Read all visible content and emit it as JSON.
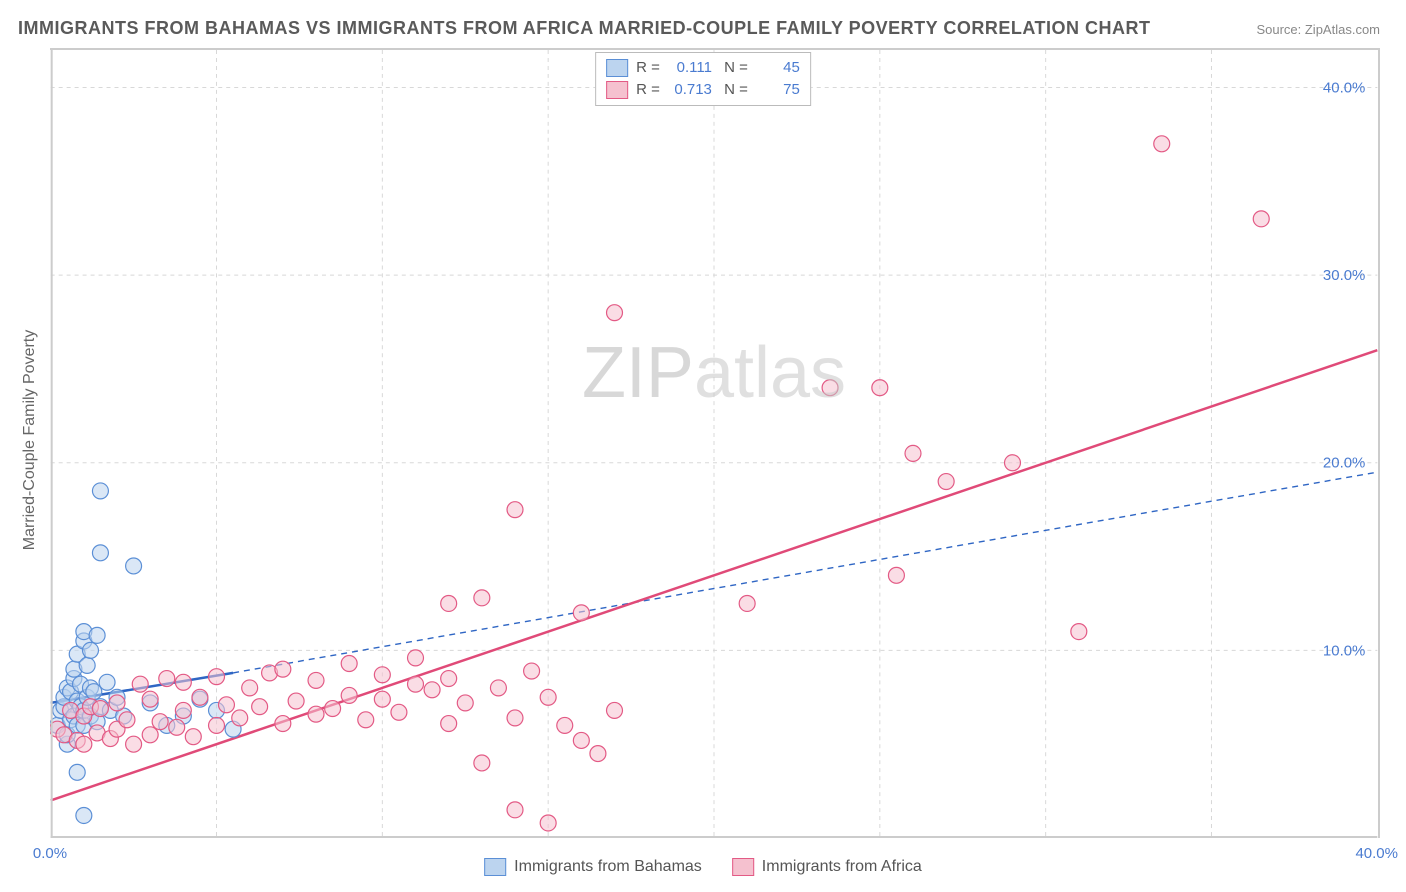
{
  "title": "IMMIGRANTS FROM BAHAMAS VS IMMIGRANTS FROM AFRICA MARRIED-COUPLE FAMILY POVERTY CORRELATION CHART",
  "source": "Source: ZipAtlas.com",
  "ylabel": "Married-Couple Family Poverty",
  "watermark_a": "ZIP",
  "watermark_b": "atlas",
  "chart": {
    "type": "scatter",
    "xlim": [
      0,
      40
    ],
    "ylim": [
      0,
      42
    ],
    "xticks": [
      0,
      10,
      20,
      30,
      40
    ],
    "xtick_labels": [
      "0.0%",
      "",
      "",
      "",
      "40.0%"
    ],
    "yticks": [
      10,
      20,
      30,
      40
    ],
    "ytick_labels": [
      "10.0%",
      "20.0%",
      "30.0%",
      "40.0%"
    ],
    "xgrid_minor": [
      5,
      10,
      15,
      20,
      25,
      30,
      35
    ],
    "background_color": "#ffffff",
    "grid_color": "#d8d8d8",
    "marker_radius": 8,
    "marker_stroke_width": 1.2,
    "trend_solid_width": 2.5,
    "trend_dash_width": 1.4,
    "series": [
      {
        "name": "Immigrants from Bahamas",
        "fill": "#bcd4ef",
        "stroke": "#5b8fd6",
        "fill_opacity": 0.55,
        "R": "0.111",
        "N": "45",
        "trend_solid": {
          "x1": 0,
          "y1": 7.2,
          "x2": 5.5,
          "y2": 8.8
        },
        "trend_dash": {
          "x1": 5.5,
          "y1": 8.8,
          "x2": 40,
          "y2": 19.5
        },
        "trend_color": "#2f66c4",
        "points": [
          [
            0.2,
            6.0
          ],
          [
            0.3,
            6.8
          ],
          [
            0.4,
            7.0
          ],
          [
            0.4,
            7.5
          ],
          [
            0.5,
            5.0
          ],
          [
            0.5,
            5.5
          ],
          [
            0.5,
            8.0
          ],
          [
            0.6,
            6.3
          ],
          [
            0.6,
            7.8
          ],
          [
            0.7,
            6.5
          ],
          [
            0.7,
            8.5
          ],
          [
            0.7,
            9.0
          ],
          [
            0.8,
            3.5
          ],
          [
            0.8,
            6.0
          ],
          [
            0.8,
            7.3
          ],
          [
            0.8,
            9.8
          ],
          [
            0.9,
            7.0
          ],
          [
            0.9,
            8.2
          ],
          [
            1.0,
            6.0
          ],
          [
            1.0,
            6.8
          ],
          [
            1.0,
            10.5
          ],
          [
            1.0,
            11.0
          ],
          [
            1.1,
            7.5
          ],
          [
            1.1,
            9.2
          ],
          [
            1.2,
            6.5
          ],
          [
            1.2,
            8.0
          ],
          [
            1.2,
            10.0
          ],
          [
            1.3,
            7.8
          ],
          [
            1.4,
            6.2
          ],
          [
            1.4,
            10.8
          ],
          [
            1.5,
            7.0
          ],
          [
            1.5,
            15.2
          ],
          [
            1.5,
            18.5
          ],
          [
            1.7,
            8.3
          ],
          [
            1.8,
            6.8
          ],
          [
            2.0,
            7.5
          ],
          [
            2.2,
            6.5
          ],
          [
            2.5,
            14.5
          ],
          [
            3.0,
            7.2
          ],
          [
            3.5,
            6.0
          ],
          [
            4.0,
            6.5
          ],
          [
            4.5,
            7.4
          ],
          [
            5.0,
            6.8
          ],
          [
            5.5,
            5.8
          ],
          [
            1.0,
            1.2
          ]
        ]
      },
      {
        "name": "Immigrants from Africa",
        "fill": "#f5c1cf",
        "stroke": "#e35a85",
        "fill_opacity": 0.55,
        "R": "0.713",
        "N": "75",
        "trend_solid": {
          "x1": 0,
          "y1": 2.0,
          "x2": 40,
          "y2": 26.0
        },
        "trend_dash": null,
        "trend_color": "#e04a78",
        "points": [
          [
            0.2,
            5.8
          ],
          [
            0.4,
            5.5
          ],
          [
            0.6,
            6.8
          ],
          [
            0.8,
            5.2
          ],
          [
            1.0,
            6.5
          ],
          [
            1.0,
            5.0
          ],
          [
            1.2,
            7.0
          ],
          [
            1.4,
            5.6
          ],
          [
            1.5,
            6.9
          ],
          [
            1.8,
            5.3
          ],
          [
            2.0,
            7.2
          ],
          [
            2.0,
            5.8
          ],
          [
            2.3,
            6.3
          ],
          [
            2.5,
            5.0
          ],
          [
            2.7,
            8.2
          ],
          [
            3.0,
            5.5
          ],
          [
            3.0,
            7.4
          ],
          [
            3.3,
            6.2
          ],
          [
            3.5,
            8.5
          ],
          [
            3.8,
            5.9
          ],
          [
            4.0,
            6.8
          ],
          [
            4.0,
            8.3
          ],
          [
            4.3,
            5.4
          ],
          [
            4.5,
            7.5
          ],
          [
            5.0,
            6.0
          ],
          [
            5.0,
            8.6
          ],
          [
            5.3,
            7.1
          ],
          [
            5.7,
            6.4
          ],
          [
            6.0,
            8.0
          ],
          [
            6.3,
            7.0
          ],
          [
            6.6,
            8.8
          ],
          [
            7.0,
            6.1
          ],
          [
            7.0,
            9.0
          ],
          [
            7.4,
            7.3
          ],
          [
            8.0,
            6.6
          ],
          [
            8.0,
            8.4
          ],
          [
            8.5,
            6.9
          ],
          [
            9.0,
            7.6
          ],
          [
            9.0,
            9.3
          ],
          [
            9.5,
            6.3
          ],
          [
            10.0,
            8.7
          ],
          [
            10.0,
            7.4
          ],
          [
            10.5,
            6.7
          ],
          [
            11.0,
            8.2
          ],
          [
            11.0,
            9.6
          ],
          [
            11.5,
            7.9
          ],
          [
            12.0,
            6.1
          ],
          [
            12.0,
            8.5
          ],
          [
            12.0,
            12.5
          ],
          [
            12.5,
            7.2
          ],
          [
            13.0,
            4.0
          ],
          [
            13.0,
            12.8
          ],
          [
            13.5,
            8.0
          ],
          [
            14.0,
            6.4
          ],
          [
            14.0,
            17.5
          ],
          [
            14.0,
            1.5
          ],
          [
            14.5,
            8.9
          ],
          [
            15.0,
            7.5
          ],
          [
            15.0,
            0.8
          ],
          [
            15.5,
            6.0
          ],
          [
            16.0,
            12.0
          ],
          [
            16.0,
            5.2
          ],
          [
            16.5,
            4.5
          ],
          [
            17.0,
            6.8
          ],
          [
            17.0,
            28.0
          ],
          [
            21.0,
            12.5
          ],
          [
            23.5,
            24.0
          ],
          [
            25.0,
            24.0
          ],
          [
            25.5,
            14.0
          ],
          [
            26.0,
            20.5
          ],
          [
            27.0,
            19.0
          ],
          [
            29.0,
            20.0
          ],
          [
            31.0,
            11.0
          ],
          [
            33.5,
            37.0
          ],
          [
            36.5,
            33.0
          ]
        ]
      }
    ]
  },
  "legend_bottom": [
    {
      "label": "Immigrants from Bahamas",
      "fill": "#bcd4ef",
      "stroke": "#5b8fd6"
    },
    {
      "label": "Immigrants from Africa",
      "fill": "#f5c1cf",
      "stroke": "#e35a85"
    }
  ]
}
